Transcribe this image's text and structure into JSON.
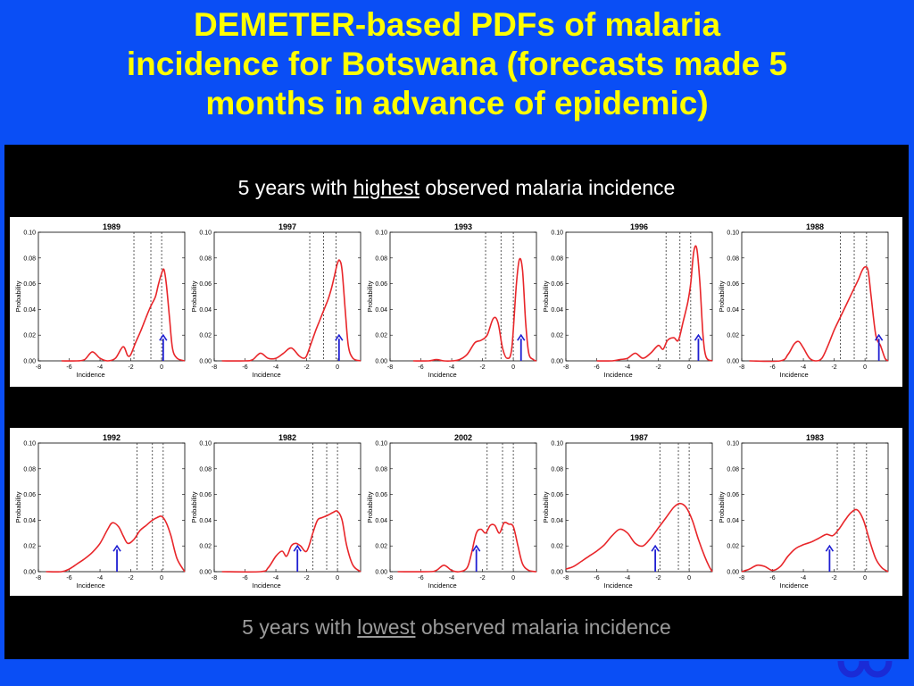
{
  "title": {
    "lines": [
      "DEMETER-based PDFs of malaria",
      "incidence for Botswana (forecasts made 5",
      "months in advance of epidemic)"
    ]
  },
  "captions": {
    "top": {
      "before": "5 years with ",
      "emphasis": "highest",
      "after": " observed malaria incidence"
    },
    "bottom": {
      "before": "5 years with ",
      "emphasis": "lowest",
      "after": " observed malaria incidence"
    }
  },
  "colors": {
    "background": "#0a4ef5",
    "title": "#ffff00",
    "pdf_curve": "#e8262a",
    "observed_arrow": "#1e1ed2",
    "quantile_lines": "#333333"
  },
  "chart_data": [
    {
      "type": "line",
      "title": "1989",
      "xlabel": "Incidence",
      "ylabel": "Probability",
      "xlim": [
        -8,
        1.5
      ],
      "ylim": [
        0,
        0.1
      ],
      "xticks": [
        "-8",
        "-6",
        "-4",
        "-2",
        "0"
      ],
      "yticks": [
        "0.00",
        "0.02",
        "0.04",
        "0.06",
        "0.08",
        "0.10"
      ],
      "quantile_lines": [
        -1.8,
        -0.7,
        0
      ],
      "observed": 0.1,
      "series": [
        {
          "x": [
            -6.5,
            -5.5,
            -5,
            -4.5,
            -4,
            -3.5,
            -3,
            -2.5,
            -2.2,
            -2,
            -1.7,
            -1.4,
            -1.2,
            -1,
            -0.8,
            -0.6,
            -0.4,
            -0.2,
            0,
            0.15,
            0.3,
            0.5,
            0.7,
            1,
            1.5
          ],
          "y": [
            0,
            0,
            0.001,
            0.007,
            0.002,
            0,
            0.002,
            0.011,
            0.004,
            0.005,
            0.014,
            0.022,
            0.028,
            0.034,
            0.04,
            0.045,
            0.05,
            0.06,
            0.068,
            0.071,
            0.06,
            0.035,
            0.01,
            0.002,
            0
          ]
        }
      ]
    },
    {
      "type": "line",
      "title": "1997",
      "xlabel": "Incidence",
      "ylabel": "Probability",
      "xlim": [
        -8,
        1.5
      ],
      "ylim": [
        0,
        0.1
      ],
      "xticks": [
        "-8",
        "-6",
        "-4",
        "-2",
        "0"
      ],
      "yticks": [
        "0.00",
        "0.02",
        "0.04",
        "0.06",
        "0.08",
        "0.10"
      ],
      "quantile_lines": [
        -1.8,
        -0.9,
        -0.1
      ],
      "observed": 0.1,
      "series": [
        {
          "x": [
            -7.5,
            -6,
            -5.5,
            -5,
            -4.5,
            -4,
            -3.5,
            -3,
            -2.5,
            -2.2,
            -2,
            -1.7,
            -1.4,
            -1.2,
            -1,
            -0.8,
            -0.6,
            -0.4,
            -0.2,
            0,
            0.15,
            0.3,
            0.5,
            0.7,
            1,
            1.5
          ],
          "y": [
            0,
            0,
            0.001,
            0.006,
            0.002,
            0.002,
            0.006,
            0.01,
            0.004,
            0.002,
            0.004,
            0.014,
            0.024,
            0.03,
            0.036,
            0.042,
            0.048,
            0.056,
            0.066,
            0.076,
            0.078,
            0.07,
            0.04,
            0.012,
            0.002,
            0
          ]
        }
      ]
    },
    {
      "type": "line",
      "title": "1993",
      "xlabel": "Incidence",
      "ylabel": "Probability",
      "xlim": [
        -8,
        1.5
      ],
      "ylim": [
        0,
        0.1
      ],
      "xticks": [
        "-8",
        "-6",
        "-4",
        "-2",
        "0"
      ],
      "yticks": [
        "0.00",
        "0.02",
        "0.04",
        "0.06",
        "0.08",
        "0.10"
      ],
      "quantile_lines": [
        -1.8,
        -0.8,
        0
      ],
      "observed": 0.5,
      "series": [
        {
          "x": [
            -6.5,
            -5.5,
            -5,
            -4.5,
            -4,
            -3.5,
            -3,
            -2.5,
            -2.1,
            -1.7,
            -1.3,
            -1,
            -0.7,
            -0.4,
            -0.1,
            0.2,
            0.4,
            0.6,
            0.8,
            1,
            1.3,
            1.5
          ],
          "y": [
            0,
            0,
            0.001,
            0,
            0,
            0.001,
            0.005,
            0.014,
            0.016,
            0.02,
            0.033,
            0.03,
            0.01,
            0.002,
            0.01,
            0.06,
            0.079,
            0.07,
            0.03,
            0.006,
            0.001,
            0
          ]
        }
      ]
    },
    {
      "type": "line",
      "title": "1996",
      "xlabel": "Incidence",
      "ylabel": "Probability",
      "xlim": [
        -8,
        1.5
      ],
      "ylim": [
        0,
        0.1
      ],
      "xticks": [
        "-8",
        "-6",
        "-4",
        "-2",
        "0"
      ],
      "yticks": [
        "0.00",
        "0.02",
        "0.04",
        "0.06",
        "0.08",
        "0.10"
      ],
      "quantile_lines": [
        -1.5,
        -0.6,
        0.1
      ],
      "observed": 0.6,
      "series": [
        {
          "x": [
            -6,
            -5,
            -4.5,
            -4,
            -3.5,
            -3,
            -2.5,
            -2,
            -1.7,
            -1.4,
            -1,
            -0.7,
            -0.4,
            -0.1,
            0.1,
            0.3,
            0.5,
            0.7,
            0.9,
            1.1,
            1.5
          ],
          "y": [
            0,
            0,
            0.001,
            0.002,
            0.006,
            0.002,
            0.006,
            0.012,
            0.009,
            0.016,
            0.018,
            0.016,
            0.03,
            0.045,
            0.06,
            0.085,
            0.087,
            0.06,
            0.02,
            0.003,
            0
          ]
        }
      ]
    },
    {
      "type": "line",
      "title": "1988",
      "xlabel": "Incidence",
      "ylabel": "Probability",
      "xlim": [
        -8,
        1.5
      ],
      "ylim": [
        0,
        0.1
      ],
      "xticks": [
        "-8",
        "-6",
        "-4",
        "-2",
        "0"
      ],
      "yticks": [
        "0.00",
        "0.02",
        "0.04",
        "0.06",
        "0.08",
        "0.10"
      ],
      "quantile_lines": [
        -1.6,
        -0.7,
        0.1
      ],
      "observed": 0.9,
      "series": [
        {
          "x": [
            -7.5,
            -5.5,
            -5,
            -4.6,
            -4.3,
            -4,
            -3.6,
            -3.2,
            -2.8,
            -2.4,
            -2,
            -1.6,
            -1.2,
            -0.8,
            -0.4,
            -0.2,
            0,
            0.2,
            0.4,
            0.7,
            1,
            1.3,
            1.5
          ],
          "y": [
            0,
            0,
            0.005,
            0.013,
            0.015,
            0.01,
            0.002,
            0,
            0.002,
            0.012,
            0.024,
            0.034,
            0.044,
            0.054,
            0.064,
            0.07,
            0.073,
            0.07,
            0.05,
            0.02,
            0.012,
            0.002,
            0
          ]
        }
      ]
    },
    {
      "type": "line",
      "title": "1992",
      "xlabel": "Incidence",
      "ylabel": "Probability",
      "xlim": [
        -8,
        1.5
      ],
      "ylim": [
        0,
        0.1
      ],
      "xticks": [
        "-8",
        "-6",
        "-4",
        "-2",
        "0"
      ],
      "yticks": [
        "0.00",
        "0.02",
        "0.04",
        "0.06",
        "0.08",
        "0.10"
      ],
      "quantile_lines": [
        -1.6,
        -0.6,
        0.1
      ],
      "observed": -2.9,
      "series": [
        {
          "x": [
            -7.5,
            -6.5,
            -6,
            -5.5,
            -5,
            -4.5,
            -4,
            -3.5,
            -3.2,
            -2.8,
            -2.5,
            -2.2,
            -1.8,
            -1.4,
            -1,
            -0.6,
            -0.3,
            0,
            0.3,
            0.6,
            1,
            1.5
          ],
          "y": [
            0,
            0,
            0.002,
            0.006,
            0.01,
            0.015,
            0.022,
            0.033,
            0.038,
            0.035,
            0.028,
            0.022,
            0.025,
            0.032,
            0.036,
            0.04,
            0.042,
            0.043,
            0.038,
            0.028,
            0.01,
            0
          ]
        }
      ]
    },
    {
      "type": "line",
      "title": "1982",
      "xlabel": "Incidence",
      "ylabel": "Probability",
      "xlim": [
        -8,
        1.5
      ],
      "ylim": [
        0,
        0.1
      ],
      "xticks": [
        "-8",
        "-6",
        "-4",
        "-2",
        "0"
      ],
      "yticks": [
        "0.00",
        "0.02",
        "0.04",
        "0.06",
        "0.08",
        "0.10"
      ],
      "quantile_lines": [
        -1.6,
        -0.7,
        0
      ],
      "observed": -2.6,
      "series": [
        {
          "x": [
            -7.5,
            -5,
            -4.5,
            -4,
            -3.6,
            -3.3,
            -3,
            -2.7,
            -2.4,
            -2,
            -1.6,
            -1.3,
            -1,
            -0.6,
            -0.3,
            0,
            0.3,
            0.6,
            1,
            1.5
          ],
          "y": [
            0,
            0,
            0.003,
            0.012,
            0.016,
            0.012,
            0.02,
            0.022,
            0.02,
            0.016,
            0.03,
            0.04,
            0.042,
            0.044,
            0.046,
            0.047,
            0.04,
            0.02,
            0.005,
            0
          ]
        }
      ]
    },
    {
      "type": "line",
      "title": "2002",
      "xlabel": "Incidence",
      "ylabel": "Probability",
      "xlim": [
        -8,
        1.5
      ],
      "ylim": [
        0,
        0.1
      ],
      "xticks": [
        "-8",
        "-6",
        "-4",
        "-2",
        "0"
      ],
      "yticks": [
        "0.00",
        "0.02",
        "0.04",
        "0.06",
        "0.08",
        "0.10"
      ],
      "quantile_lines": [
        -1.7,
        -0.7,
        0
      ],
      "observed": -2.4,
      "series": [
        {
          "x": [
            -7.5,
            -5.5,
            -5,
            -4.5,
            -4,
            -3.5,
            -3,
            -2.7,
            -2.4,
            -2.1,
            -1.8,
            -1.5,
            -1.2,
            -0.9,
            -0.6,
            -0.3,
            0,
            0.3,
            0.6,
            1,
            1.5
          ],
          "y": [
            0,
            0,
            0.001,
            0.005,
            0.001,
            0,
            0.003,
            0.015,
            0.03,
            0.033,
            0.03,
            0.036,
            0.036,
            0.03,
            0.038,
            0.037,
            0.035,
            0.02,
            0.006,
            0.001,
            0
          ]
        }
      ]
    },
    {
      "type": "line",
      "title": "1987",
      "xlabel": "Incidence",
      "ylabel": "Probability",
      "xlim": [
        -8,
        1.5
      ],
      "ylim": [
        0,
        0.1
      ],
      "xticks": [
        "-8",
        "-6",
        "-4",
        "-2",
        "0"
      ],
      "yticks": [
        "0.00",
        "0.02",
        "0.04",
        "0.06",
        "0.08",
        "0.10"
      ],
      "quantile_lines": [
        -1.9,
        -0.7,
        0
      ],
      "observed": -2.2,
      "series": [
        {
          "x": [
            -8,
            -7.5,
            -7,
            -6.5,
            -6,
            -5.5,
            -5,
            -4.5,
            -4,
            -3.5,
            -3,
            -2.5,
            -2,
            -1.5,
            -1,
            -0.6,
            -0.2,
            0.2,
            0.6,
            1,
            1.3,
            1.5
          ],
          "y": [
            0.002,
            0.004,
            0.008,
            0.012,
            0.016,
            0.021,
            0.028,
            0.033,
            0.03,
            0.022,
            0.02,
            0.026,
            0.034,
            0.042,
            0.05,
            0.053,
            0.05,
            0.04,
            0.025,
            0.012,
            0.004,
            0
          ]
        }
      ]
    },
    {
      "type": "line",
      "title": "1983",
      "xlabel": "Incidence",
      "ylabel": "Probability",
      "xlim": [
        -8,
        1.5
      ],
      "ylim": [
        0,
        0.1
      ],
      "xticks": [
        "-8",
        "-6",
        "-4",
        "-2",
        "0"
      ],
      "yticks": [
        "0.00",
        "0.02",
        "0.04",
        "0.06",
        "0.08",
        "0.10"
      ],
      "quantile_lines": [
        -1.8,
        -0.7,
        0.1
      ],
      "observed": -2.3,
      "series": [
        {
          "x": [
            -8,
            -7.5,
            -7,
            -6.5,
            -6,
            -5.5,
            -5,
            -4.5,
            -4,
            -3.5,
            -3,
            -2.5,
            -2.1,
            -1.7,
            -1.3,
            -0.9,
            -0.5,
            -0.1,
            0.3,
            0.7,
            1.1,
            1.5
          ],
          "y": [
            0,
            0.002,
            0.005,
            0.004,
            0.001,
            0.004,
            0.012,
            0.018,
            0.021,
            0.023,
            0.026,
            0.029,
            0.028,
            0.033,
            0.04,
            0.046,
            0.048,
            0.04,
            0.024,
            0.01,
            0.003,
            0
          ]
        }
      ]
    }
  ]
}
